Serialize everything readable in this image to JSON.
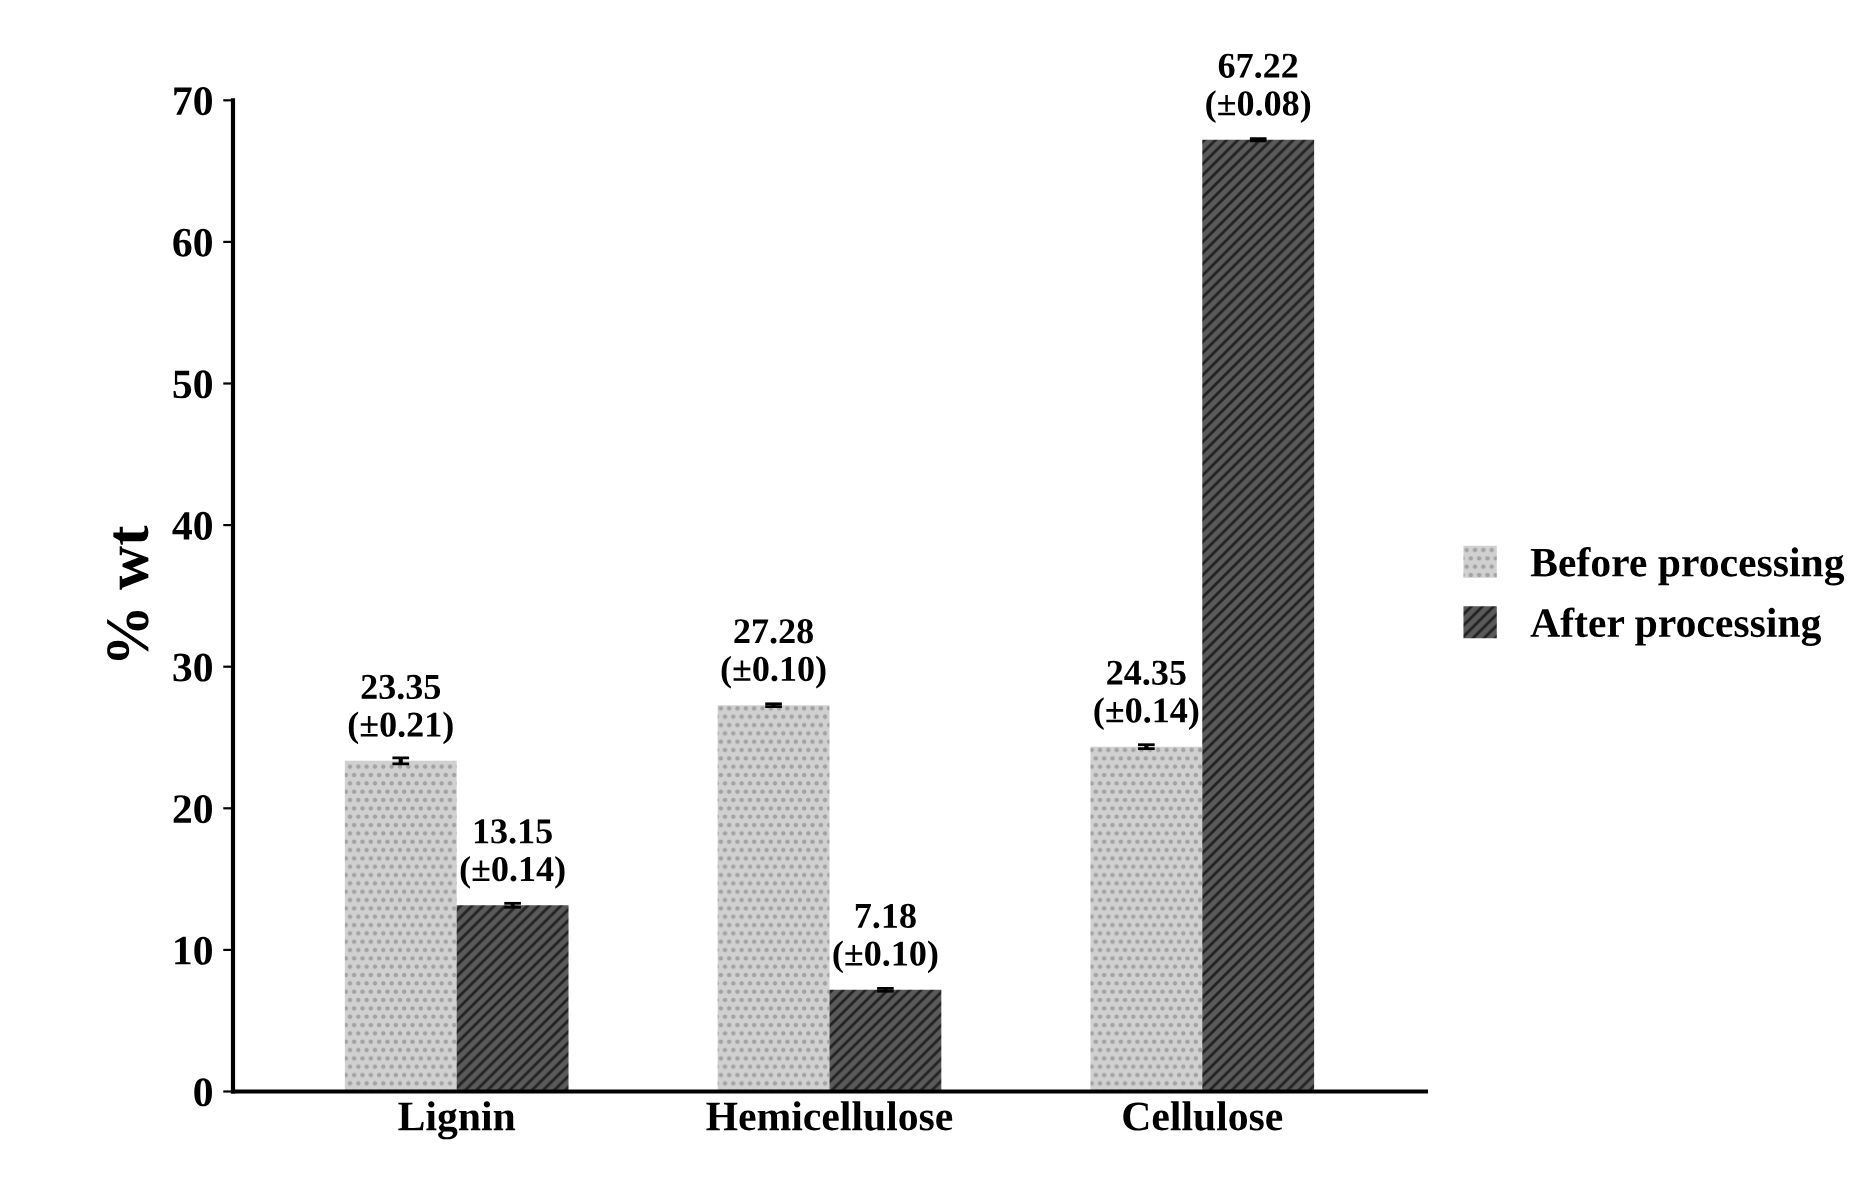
{
  "chart_data": {
    "type": "bar",
    "ylabel": "% wt",
    "categories": [
      "Lignin",
      "Hemicellulose",
      "Cellulose"
    ],
    "series": [
      {
        "name": "Before processing",
        "color": "#d0d0d0",
        "values": [
          23.35,
          27.28,
          24.35
        ],
        "errors": [
          0.21,
          0.1,
          0.14
        ],
        "value_labels": [
          "23.35\n(±0.21)",
          "27.28\n(±0.10)",
          "24.35\n(±0.14)"
        ]
      },
      {
        "name": "After processing",
        "color": "#5a5a5a",
        "values": [
          13.15,
          7.18,
          67.22
        ],
        "errors": [
          0.14,
          0.1,
          0.08
        ],
        "value_labels": [
          "13.15\n(±0.14)",
          "7.18\n(±0.10)",
          "67.22\n(±0.08)"
        ]
      }
    ],
    "ylim": [
      0,
      70
    ],
    "yticks": [
      0,
      10,
      20,
      30,
      40,
      50,
      60,
      70
    ],
    "grid": false,
    "legend": "right"
  }
}
